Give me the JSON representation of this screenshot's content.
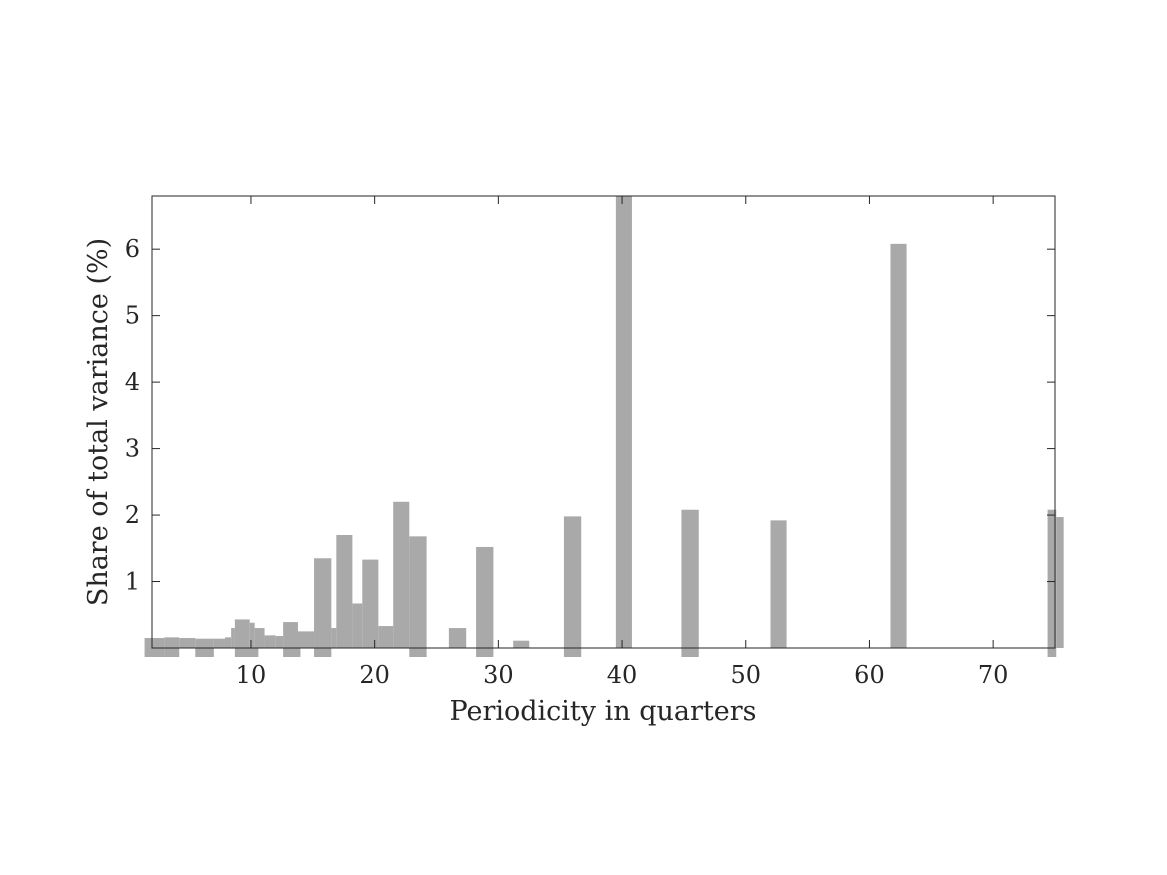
{
  "chart_data": {
    "type": "bar",
    "title": "",
    "xlabel": "Periodicity in quarters",
    "ylabel": "Share of total variance (%)",
    "xlim": [
      2,
      75
    ],
    "ylim": [
      0,
      6.8
    ],
    "x_ticks": [
      "10",
      "20",
      "30",
      "40",
      "50",
      "60",
      "70"
    ],
    "x_tick_values": [
      10,
      20,
      30,
      40,
      50,
      60,
      70
    ],
    "y_ticks": [
      "1",
      "2",
      "3",
      "4",
      "5",
      "6"
    ],
    "y_tick_values": [
      1,
      2,
      3,
      4,
      5,
      6
    ],
    "grid": false,
    "bar_color": "#a9a9a9",
    "bars": [
      {
        "x0": 1.4,
        "x1": 2.2,
        "value": 0.15
      },
      {
        "x0": 2.2,
        "x1": 3.0,
        "value": 0.15
      },
      {
        "x0": 3.0,
        "x1": 4.2,
        "value": 0.16
      },
      {
        "x0": 4.2,
        "x1": 5.5,
        "value": 0.15
      },
      {
        "x0": 5.5,
        "x1": 7.0,
        "value": 0.14
      },
      {
        "x0": 7.0,
        "x1": 7.9,
        "value": 0.14
      },
      {
        "x0": 7.9,
        "x1": 8.4,
        "value": 0.16
      },
      {
        "x0": 8.4,
        "x1": 8.7,
        "value": 0.3
      },
      {
        "x0": 8.7,
        "x1": 9.9,
        "value": 0.43
      },
      {
        "x0": 9.9,
        "x1": 10.3,
        "value": 0.38
      },
      {
        "x0": 10.3,
        "x1": 11.1,
        "value": 0.3
      },
      {
        "x0": 11.1,
        "x1": 12.0,
        "value": 0.19
      },
      {
        "x0": 12.0,
        "x1": 12.6,
        "value": 0.18
      },
      {
        "x0": 12.6,
        "x1": 13.8,
        "value": 0.39
      },
      {
        "x0": 13.8,
        "x1": 15.1,
        "value": 0.25
      },
      {
        "x0": 15.1,
        "x1": 16.5,
        "value": 1.35
      },
      {
        "x0": 16.5,
        "x1": 16.9,
        "value": 0.3
      },
      {
        "x0": 16.9,
        "x1": 18.2,
        "value": 1.7
      },
      {
        "x0": 18.2,
        "x1": 19.0,
        "value": 0.67
      },
      {
        "x0": 19.0,
        "x1": 20.3,
        "value": 1.33
      },
      {
        "x0": 20.3,
        "x1": 21.5,
        "value": 0.33
      },
      {
        "x0": 21.5,
        "x1": 22.8,
        "value": 2.2
      },
      {
        "x0": 22.8,
        "x1": 24.2,
        "value": 1.68
      },
      {
        "x0": 24.2,
        "x1": 26.0,
        "value": 0.0
      },
      {
        "x0": 26.0,
        "x1": 27.4,
        "value": 0.3
      },
      {
        "x0": 28.2,
        "x1": 29.6,
        "value": 1.52
      },
      {
        "x0": 31.2,
        "x1": 32.5,
        "value": 0.11
      },
      {
        "x0": 35.3,
        "x1": 36.7,
        "value": 1.98
      },
      {
        "x0": 39.5,
        "x1": 40.8,
        "value": 6.8
      },
      {
        "x0": 44.8,
        "x1": 46.2,
        "value": 2.08
      },
      {
        "x0": 52.0,
        "x1": 53.3,
        "value": 1.92
      },
      {
        "x0": 61.7,
        "x1": 63.0,
        "value": 6.08
      },
      {
        "x0": 74.4,
        "x1": 75.1,
        "value": 2.08
      },
      {
        "x0": 75.1,
        "x1": 75.7,
        "value": 1.97
      }
    ],
    "below_axis_marks": [
      {
        "x0": 1.4,
        "x1": 3.0
      },
      {
        "x0": 3.0,
        "x1": 4.2
      },
      {
        "x0": 5.5,
        "x1": 7.0
      },
      {
        "x0": 8.7,
        "x1": 10.6
      },
      {
        "x0": 12.6,
        "x1": 14.0
      },
      {
        "x0": 15.1,
        "x1": 16.5
      },
      {
        "x0": 22.8,
        "x1": 24.2
      },
      {
        "x0": 28.2,
        "x1": 29.6
      },
      {
        "x0": 35.3,
        "x1": 36.7
      },
      {
        "x0": 44.8,
        "x1": 46.2
      },
      {
        "x0": 74.4,
        "x1": 75.1
      }
    ]
  }
}
